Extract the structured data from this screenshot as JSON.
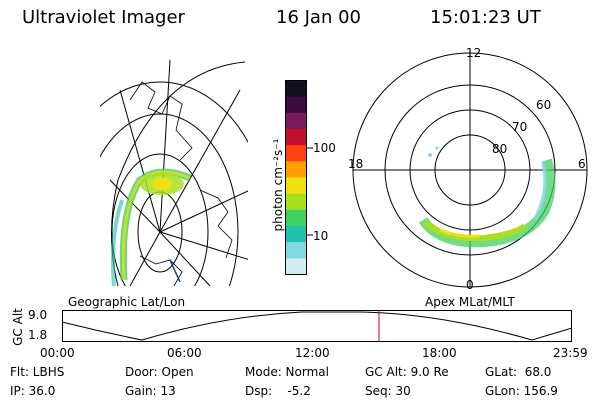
{
  "header": {
    "instrument": "Ultraviolet Imager",
    "date": "16 Jan 00",
    "time": "15:01:23 UT"
  },
  "geo_map": {
    "label": "Geographic Lat/Lon"
  },
  "colorbar": {
    "unit_label": "photon cm⁻²s⁻¹",
    "ticks": [
      "100",
      "10"
    ],
    "colors": [
      "#101020",
      "#3a0a40",
      "#7a1a5a",
      "#c0102a",
      "#ff4010",
      "#ffa000",
      "#f0e010",
      "#a8e020",
      "#40d060",
      "#20c0b0",
      "#80d8e0",
      "#d0f0f0"
    ]
  },
  "polar_plot": {
    "label": "Apex MLat/MLT",
    "mlt_labels": {
      "top": "12",
      "left": "18",
      "right": "6",
      "bottom": "0"
    },
    "lat_labels": [
      "60",
      "70",
      "80"
    ]
  },
  "altitude_plot": {
    "axis_label": "GC Alt",
    "y_ticks": [
      "9.0",
      "1.8"
    ],
    "x_ticks": [
      "00:00",
      "06:00",
      "12:00",
      "18:00",
      "23:59"
    ],
    "marker_color": "#c00020"
  },
  "status": {
    "flt": "Flt: LBHS",
    "ip": "IP: 36.0",
    "door": "Door: Open",
    "gain": "Gain: 13",
    "mode": "Mode: Normal",
    "dsp": "Dsp:    -5.2",
    "gc_alt": "GC Alt: 9.0 Re",
    "seq": "Seq: 30",
    "glat": "GLat:  68.0",
    "glon": "GLon: 156.9"
  }
}
